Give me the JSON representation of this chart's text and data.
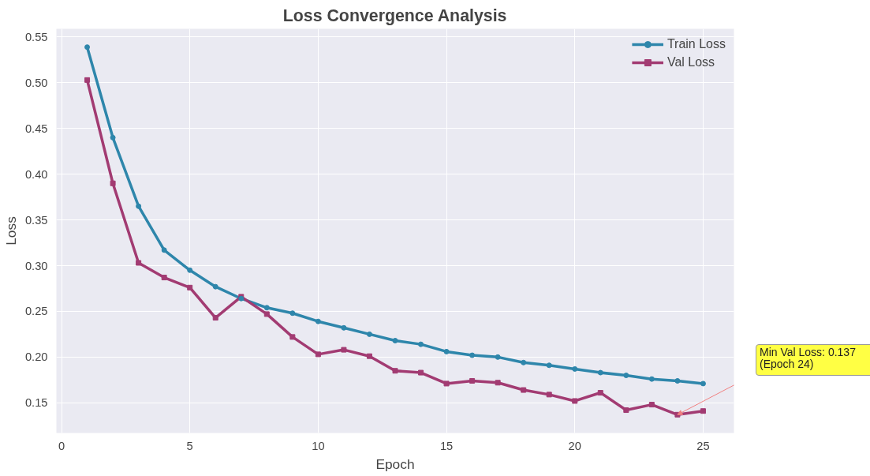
{
  "chart_data": {
    "type": "line",
    "title": "Loss Convergence Analysis",
    "xlabel": "Epoch",
    "ylabel": "Loss",
    "x": [
      1,
      2,
      3,
      4,
      5,
      6,
      7,
      8,
      9,
      10,
      11,
      12,
      13,
      14,
      15,
      16,
      17,
      18,
      19,
      20,
      21,
      22,
      23,
      24,
      25
    ],
    "series": [
      {
        "name": "Train Loss",
        "color": "#2e86ab",
        "marker": "circle",
        "values": [
          0.539,
          0.44,
          0.365,
          0.317,
          0.295,
          0.277,
          0.264,
          0.254,
          0.248,
          0.239,
          0.232,
          0.225,
          0.218,
          0.214,
          0.206,
          0.202,
          0.2,
          0.194,
          0.191,
          0.187,
          0.183,
          0.18,
          0.176,
          0.174,
          0.171
        ]
      },
      {
        "name": "Val Loss",
        "color": "#a23b72",
        "marker": "square",
        "values": [
          0.503,
          0.39,
          0.303,
          0.287,
          0.276,
          0.243,
          0.266,
          0.247,
          0.222,
          0.203,
          0.208,
          0.201,
          0.185,
          0.183,
          0.171,
          0.174,
          0.172,
          0.164,
          0.159,
          0.152,
          0.161,
          0.142,
          0.148,
          0.137,
          0.141
        ]
      }
    ],
    "xlim": [
      -0.2,
      26.2
    ],
    "ylim": [
      0.117,
      0.559
    ],
    "xticks": [
      0,
      5,
      10,
      15,
      20,
      25
    ],
    "yticks": [
      0.15,
      {
        "value": 0.2,
        "label": "0.20"
      },
      0.25,
      {
        "value": 0.3,
        "label": "0.30"
      },
      0.35,
      {
        "value": 0.4,
        "label": "0.40"
      },
      0.45,
      {
        "value": 0.5,
        "label": "0.50"
      },
      0.55
    ],
    "grid": true,
    "legend": "top right",
    "line_style": "solid",
    "annotations": [
      {
        "text": "Min Val Loss: 0.137\n(Epoch 24)",
        "x": 24,
        "y": 0.137
      }
    ]
  }
}
